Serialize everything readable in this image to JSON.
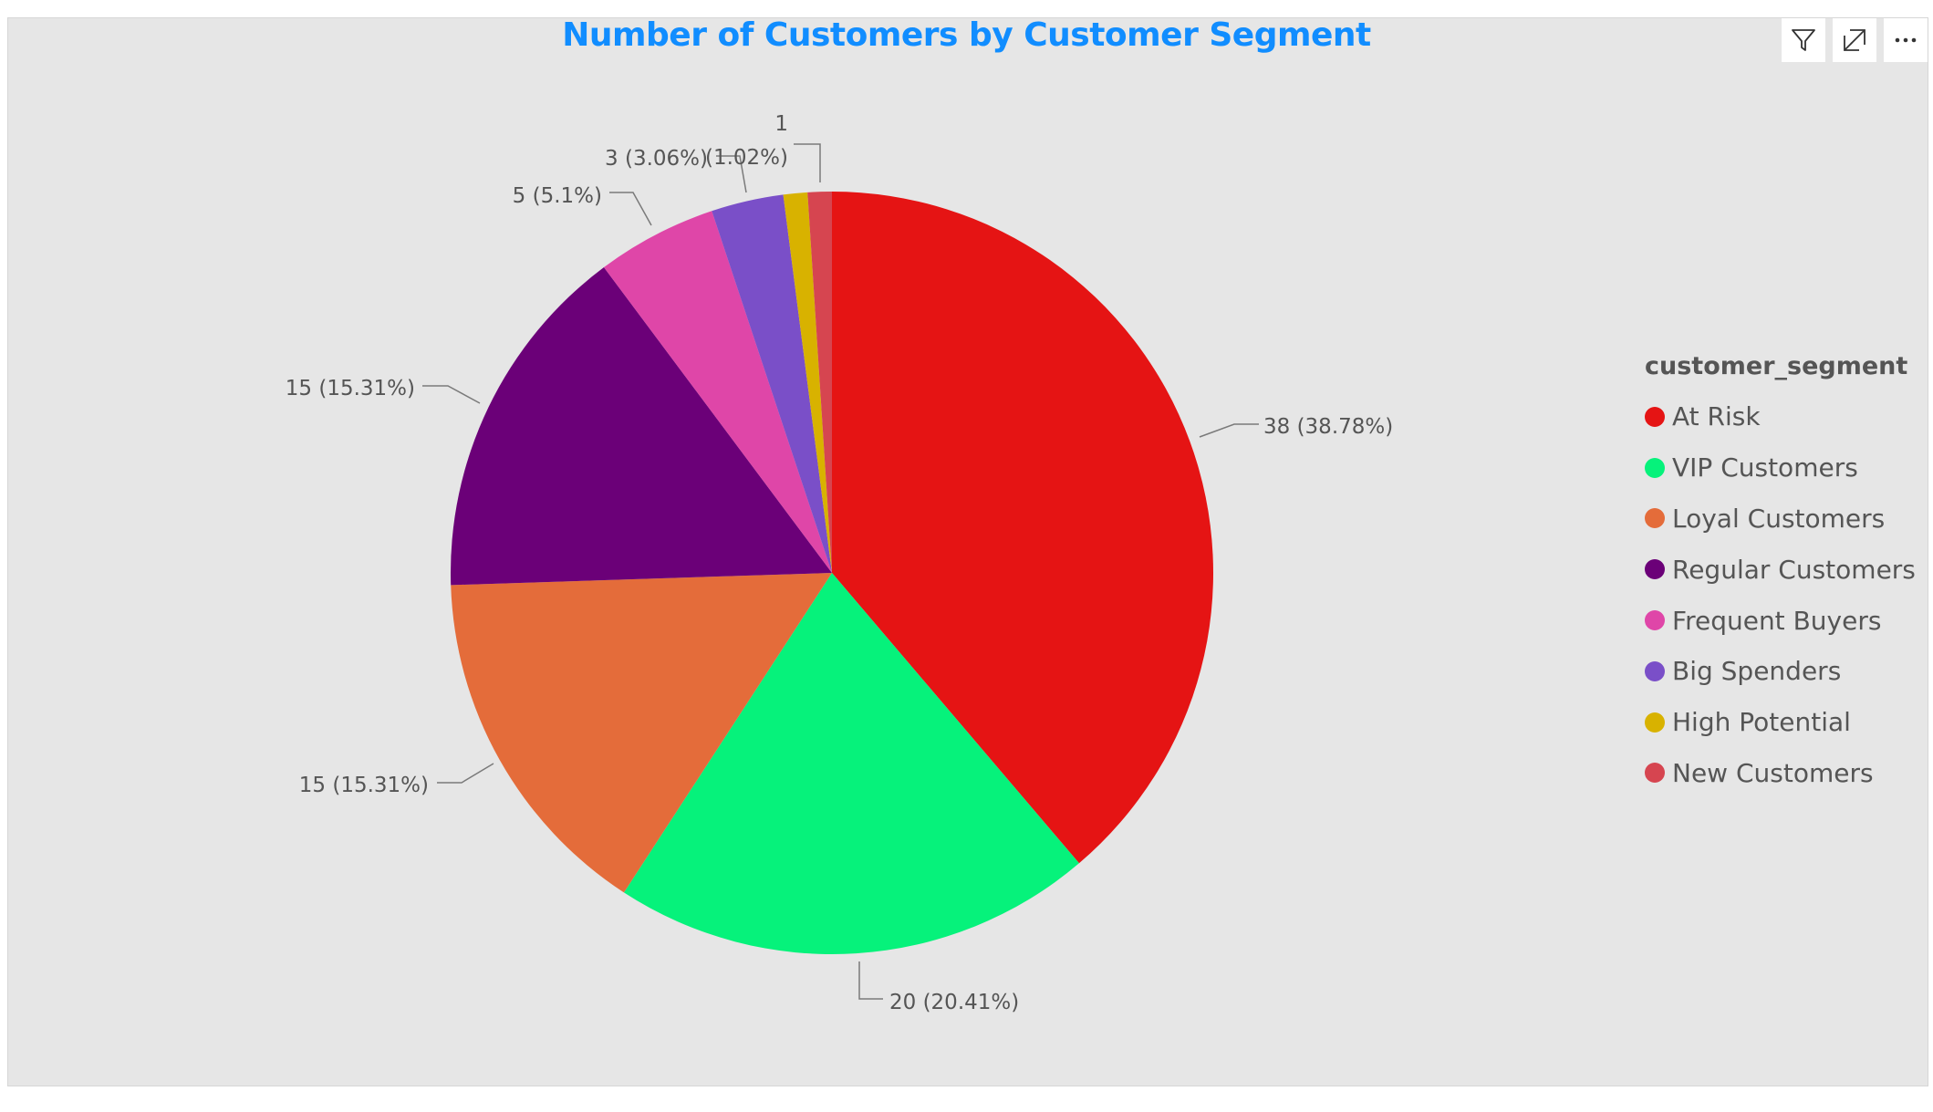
{
  "visual": {
    "toolbar": {
      "filter_icon": "filter-icon",
      "focus_icon": "focus-mode-icon",
      "more_icon": "more-options-icon"
    }
  },
  "chart_data": {
    "type": "pie",
    "title": "Number of Customers by Customer Segment",
    "title_color": "#118dff",
    "legend_title": "customer_segment",
    "legend_position": "right",
    "slices": [
      {
        "label": "At Risk",
        "value": 38,
        "percent": "38.78%",
        "color": "#e51414"
      },
      {
        "label": "VIP Customers",
        "value": 20,
        "percent": "20.41%",
        "color": "#06f27b"
      },
      {
        "label": "Loyal Customers",
        "value": 15,
        "percent": "15.31%",
        "color": "#e46c3a"
      },
      {
        "label": "Regular Customers",
        "value": 15,
        "percent": "15.31%",
        "color": "#6b0078"
      },
      {
        "label": "Frequent Buyers",
        "value": 5,
        "percent": "5.1%",
        "color": "#df46a8"
      },
      {
        "label": "Big Spenders",
        "value": 3,
        "percent": "3.06%",
        "color": "#7a4fc8"
      },
      {
        "label": "High Potential",
        "value": 1,
        "percent": "1.02%",
        "color": "#d8b200"
      },
      {
        "label": "New Customers",
        "value": 1,
        "percent": "1.02%",
        "color": "#d64550"
      }
    ],
    "data_labels": [
      "38 (38.78%)",
      "20 (20.41%)",
      "15 (15.31%)",
      "15 (15.31%)",
      "5 (5.1%)",
      "3 (3.06%)",
      "1 (1.02%)",
      ""
    ]
  }
}
